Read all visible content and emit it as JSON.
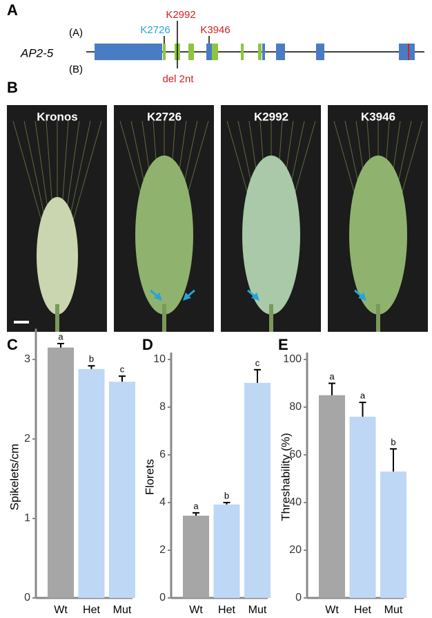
{
  "panel_a": {
    "panel": "A",
    "gene": "AP2-5",
    "genome_a": "(A)",
    "genome_b": "(B)",
    "mutations": [
      {
        "label": "K2726"
      },
      {
        "label": "K2992"
      },
      {
        "label": "K3946"
      }
    ],
    "deletion": "del 2nt"
  },
  "panel_b": {
    "panel": "B",
    "photos": [
      {
        "label": "Kronos"
      },
      {
        "label": "K2726"
      },
      {
        "label": "K2992"
      },
      {
        "label": "K3946"
      }
    ]
  },
  "chart_data": [
    {
      "type": "bar",
      "panel": "C",
      "y_label": "Spikelets/cm",
      "categories": [
        "Wt",
        "Het",
        "Mut"
      ],
      "values": [
        3.15,
        2.88,
        2.72
      ],
      "errors": [
        0.05,
        0.04,
        0.07
      ],
      "letters": [
        "a",
        "b",
        "c"
      ],
      "colors": [
        "#a6a6a6",
        "#bdd7f5",
        "#bdd7f5"
      ],
      "ylim": [
        0,
        3.3
      ],
      "yticks": [
        0,
        1,
        2,
        3
      ]
    },
    {
      "type": "bar",
      "panel": "D",
      "y_label": "Florets",
      "categories": [
        "Wt",
        "Het",
        "Mut"
      ],
      "values": [
        3.45,
        3.92,
        9.02
      ],
      "errors": [
        0.12,
        0.08,
        0.55
      ],
      "letters": [
        "a",
        "b",
        "c"
      ],
      "colors": [
        "#a6a6a6",
        "#bdd7f5",
        "#bdd7f5"
      ],
      "ylim": [
        0,
        10
      ],
      "yticks": [
        0,
        2,
        4,
        6,
        8,
        10
      ]
    },
    {
      "type": "bar",
      "panel": "E",
      "y_label": "Threshability (%)",
      "categories": [
        "Wt",
        "Het",
        "Mut"
      ],
      "values": [
        85,
        76,
        53
      ],
      "errors": [
        5,
        6,
        9.5
      ],
      "letters": [
        "a",
        "a",
        "b"
      ],
      "colors": [
        "#a6a6a6",
        "#bdd7f5",
        "#bdd7f5"
      ],
      "ylim": [
        0,
        100
      ],
      "yticks": [
        0,
        20,
        40,
        60,
        80,
        100
      ]
    }
  ]
}
